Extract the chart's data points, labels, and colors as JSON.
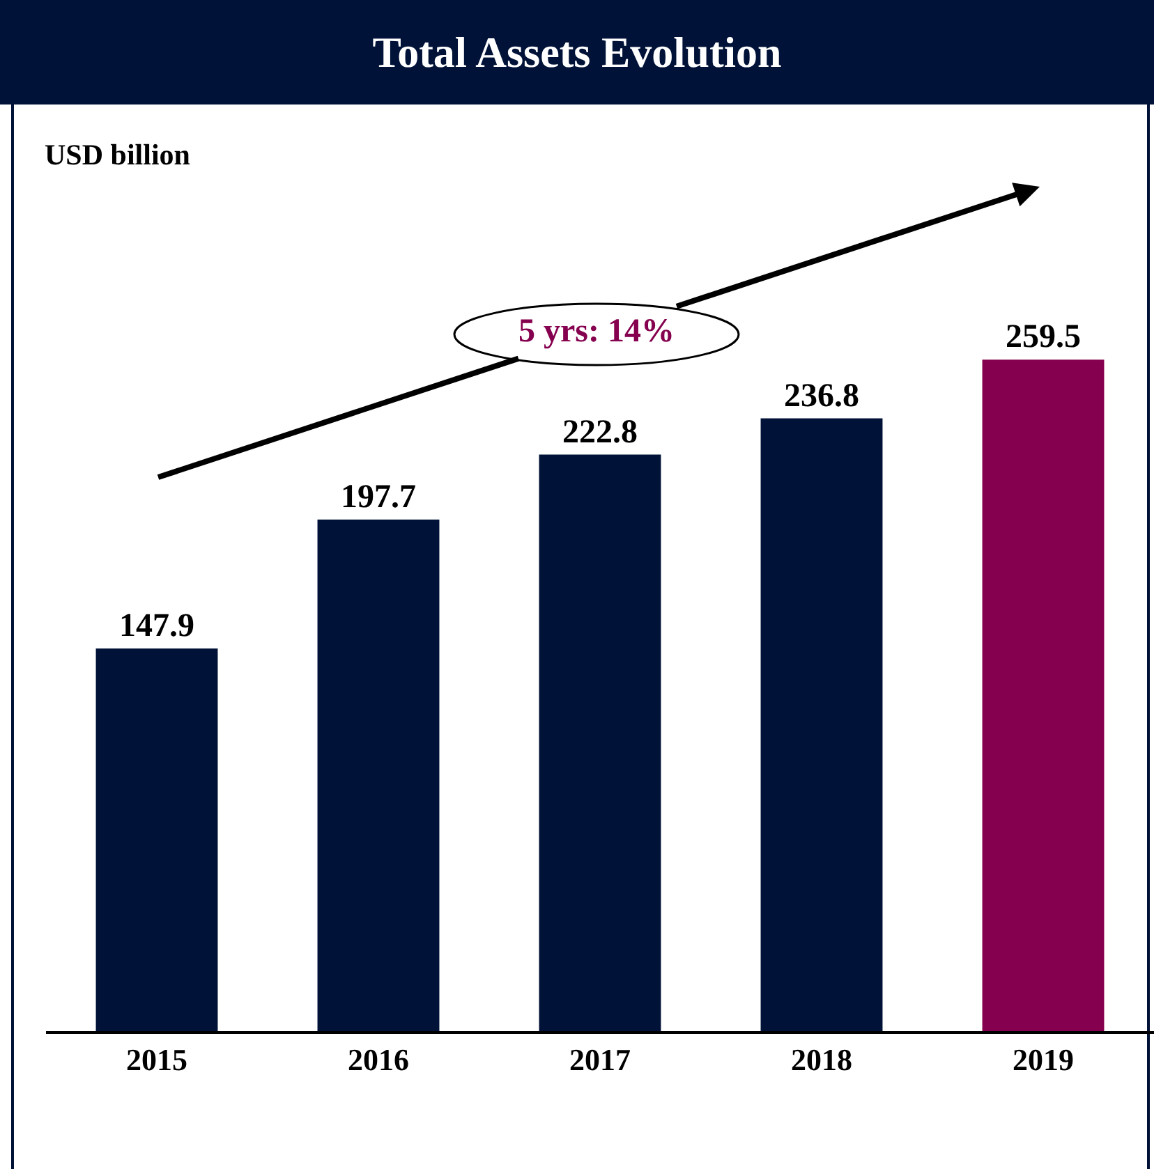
{
  "chart_data": {
    "type": "bar",
    "title": "Total Assets Evolution",
    "categories": [
      "2015",
      "2016",
      "2017",
      "2018",
      "2019"
    ],
    "values": [
      147.9,
      197.7,
      222.8,
      236.8,
      259.5
    ],
    "colors": [
      "#001237",
      "#001237",
      "#001237",
      "#001237",
      "#85004e"
    ],
    "data_labels": true,
    "grid": false,
    "annotations": [
      "USD billion",
      "5 yrs: 14%"
    ]
  }
}
